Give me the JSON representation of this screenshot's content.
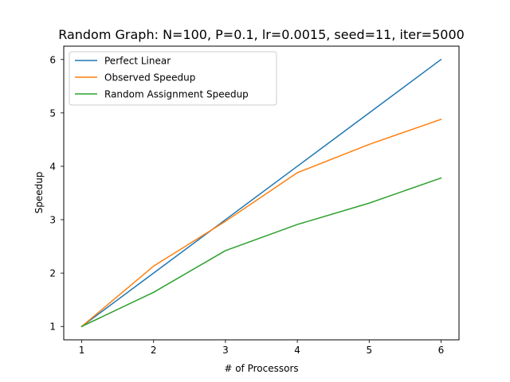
{
  "chart_data": {
    "type": "line",
    "title": "Random Graph: N=100, P=0.1, lr=0.0015, seed=11, iter=5000",
    "xlabel": "# of Processors",
    "ylabel": "Speedup",
    "x": [
      1,
      2,
      3,
      4,
      5,
      6
    ],
    "xlim": [
      0.75,
      6.25
    ],
    "ylim": [
      0.75,
      6.25
    ],
    "xticks": [
      1,
      2,
      3,
      4,
      5,
      6
    ],
    "yticks": [
      1,
      2,
      3,
      4,
      5,
      6
    ],
    "grid": false,
    "legend_position": "upper-left",
    "series": [
      {
        "name": "Perfect Linear",
        "color": "#1f77b4",
        "values": [
          1,
          2,
          3,
          4,
          5,
          6
        ]
      },
      {
        "name": "Observed Speedup",
        "color": "#ff7f0e",
        "values": [
          1,
          2.13,
          2.97,
          3.88,
          4.41,
          4.88
        ]
      },
      {
        "name": "Random Assignment Speedup",
        "color": "#2ca02c",
        "values": [
          1,
          1.64,
          2.42,
          2.91,
          3.31,
          3.78
        ]
      }
    ]
  }
}
